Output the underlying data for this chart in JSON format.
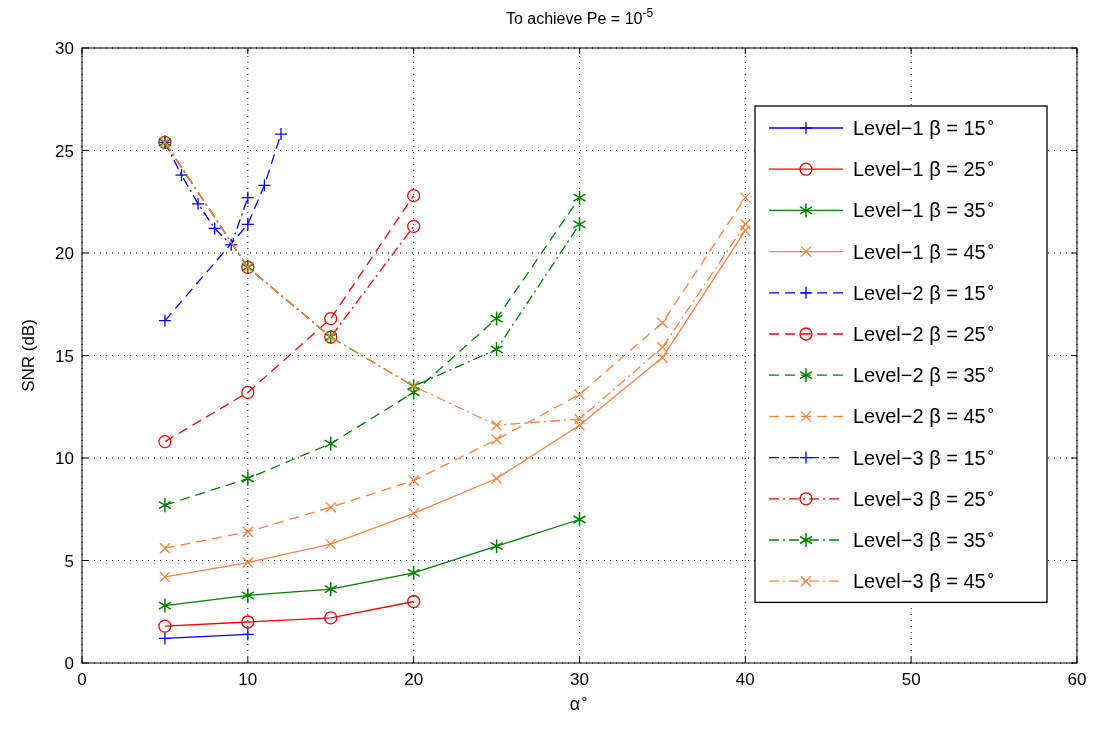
{
  "chart_data": {
    "type": "line",
    "title": "To achieve Pe = 10$^{-5}$",
    "xlabel": "α$^{∘}$",
    "ylabel": "SNR (dB)",
    "xlim": [
      0,
      60
    ],
    "xticks": [
      0,
      10,
      20,
      30,
      40,
      50,
      60
    ],
    "ylim": [
      0,
      30
    ],
    "yticks": [
      0,
      5,
      10,
      15,
      20,
      25,
      30
    ],
    "grid": true,
    "legend": "right",
    "series": [
      {
        "name": "Level−1 β = 15$^{∘}$",
        "color": "#0000ff",
        "marker": "plus",
        "line_style": "solid",
        "x": [
          5,
          10
        ],
        "values": [
          1.2,
          1.4
        ]
      },
      {
        "name": "Level−1 β = 25$^{∘}$",
        "color": "#ff0000",
        "marker": "circle",
        "line_style": "solid",
        "x": [
          5,
          10,
          15,
          20
        ],
        "values": [
          1.8,
          2.0,
          2.2,
          3.0
        ]
      },
      {
        "name": "Level−1 β = 35$^{∘}$",
        "color": "#008000",
        "marker": "cross",
        "line_style": "solid",
        "x": [
          5,
          10,
          15,
          20,
          25,
          30
        ],
        "values": [
          2.8,
          3.3,
          3.6,
          4.4,
          5.7,
          7.0
        ]
      },
      {
        "name": "Level−1 β = 45$^{∘}$",
        "color": "#ff8040",
        "marker": "x",
        "line_style": "solid",
        "x": [
          5,
          10,
          15,
          20,
          25,
          30,
          35,
          40
        ],
        "values": [
          4.2,
          4.9,
          5.8,
          7.3,
          9.0,
          11.6,
          14.9,
          21.1
        ]
      },
      {
        "name": "Level−2 β = 15$^{∘}$",
        "color": "#0000ff",
        "marker": "plus",
        "line_style": "dashed",
        "x": [
          5,
          10,
          11,
          12
        ],
        "values": [
          16.7,
          21.4,
          23.3,
          25.8
        ]
      },
      {
        "name": "Level−2 β = 25$^{∘}$",
        "color": "#ff0000",
        "marker": "circle",
        "line_style": "dashed",
        "x": [
          5,
          10,
          15,
          20
        ],
        "values": [
          10.8,
          13.2,
          16.8,
          22.8
        ]
      },
      {
        "name": "Level−2 β = 35$^{∘}$",
        "color": "#008000",
        "marker": "cross",
        "line_style": "dashed",
        "x": [
          5,
          10,
          15,
          20,
          25,
          30
        ],
        "values": [
          7.7,
          9.0,
          10.7,
          13.2,
          16.8,
          22.7
        ]
      },
      {
        "name": "Level−2 β = 45$^{∘}$",
        "color": "#ff8040",
        "marker": "x",
        "line_style": "dashed",
        "x": [
          5,
          10,
          15,
          20,
          25,
          30,
          35,
          40
        ],
        "values": [
          5.6,
          6.4,
          7.6,
          8.9,
          10.9,
          13.1,
          16.6,
          22.7
        ]
      },
      {
        "name": "Level−3 β = 15$^{∘}$",
        "color": "#0000ff",
        "marker": "plus",
        "line_style": "dashdot",
        "x": [
          5,
          6,
          7,
          8,
          9,
          10
        ],
        "values": [
          25.4,
          23.8,
          22.4,
          21.2,
          20.4,
          22.7
        ]
      },
      {
        "name": "Level−3 β = 25$^{∘}$",
        "color": "#ff0000",
        "marker": "circle",
        "line_style": "dashdot",
        "x": [
          5,
          10,
          15,
          20
        ],
        "values": [
          25.4,
          19.3,
          15.9,
          21.3
        ]
      },
      {
        "name": "Level−3 β = 35$^{∘}$",
        "color": "#008000",
        "marker": "cross",
        "line_style": "dashdot",
        "x": [
          5,
          10,
          15,
          20,
          25,
          30
        ],
        "values": [
          25.4,
          19.3,
          15.9,
          13.5,
          15.3,
          21.4
        ]
      },
      {
        "name": "Level−3 β = 45$^{∘}$",
        "color": "#ff8040",
        "marker": "x",
        "line_style": "dashdot",
        "x": [
          5,
          10,
          15,
          20,
          25,
          30,
          35,
          40
        ],
        "values": [
          25.4,
          19.3,
          15.9,
          13.5,
          11.6,
          11.9,
          15.4,
          21.4
        ]
      }
    ]
  }
}
